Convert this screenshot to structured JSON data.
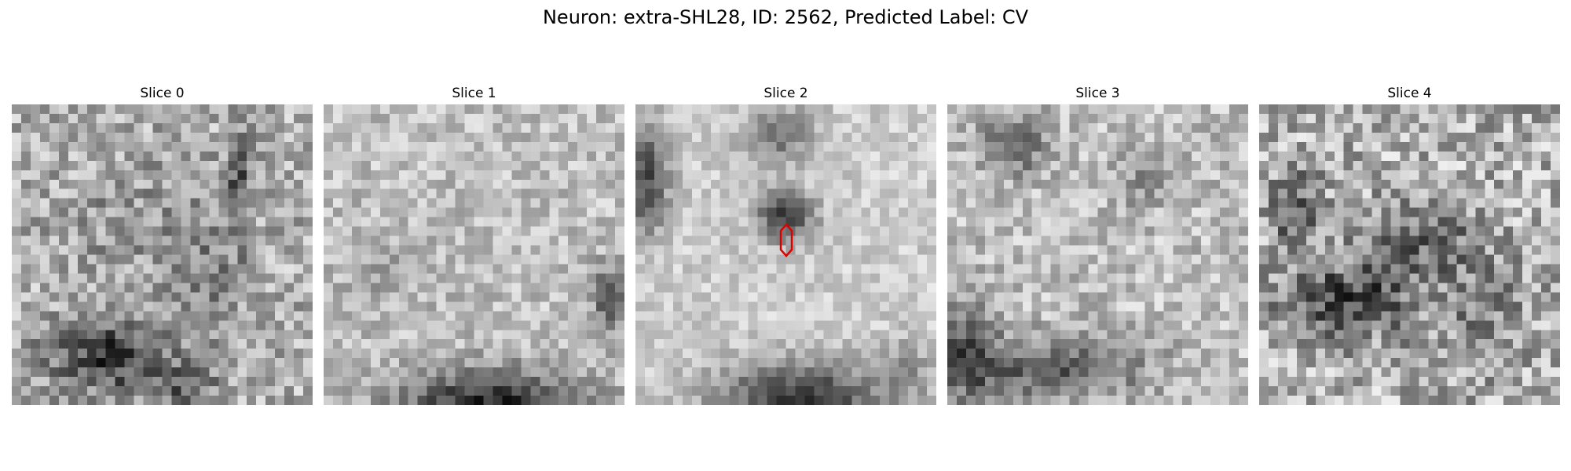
{
  "figure": {
    "title": "Neuron: extra-SHL28, ID: 2562, Predicted Label: CV"
  },
  "panels": [
    {
      "title": "Slice 0"
    },
    {
      "title": "Slice 1"
    },
    {
      "title": "Slice 2"
    },
    {
      "title": "Slice 3"
    },
    {
      "title": "Slice 4"
    }
  ],
  "colors": {
    "marker": "#dd0000",
    "background": "#ffffff"
  }
}
